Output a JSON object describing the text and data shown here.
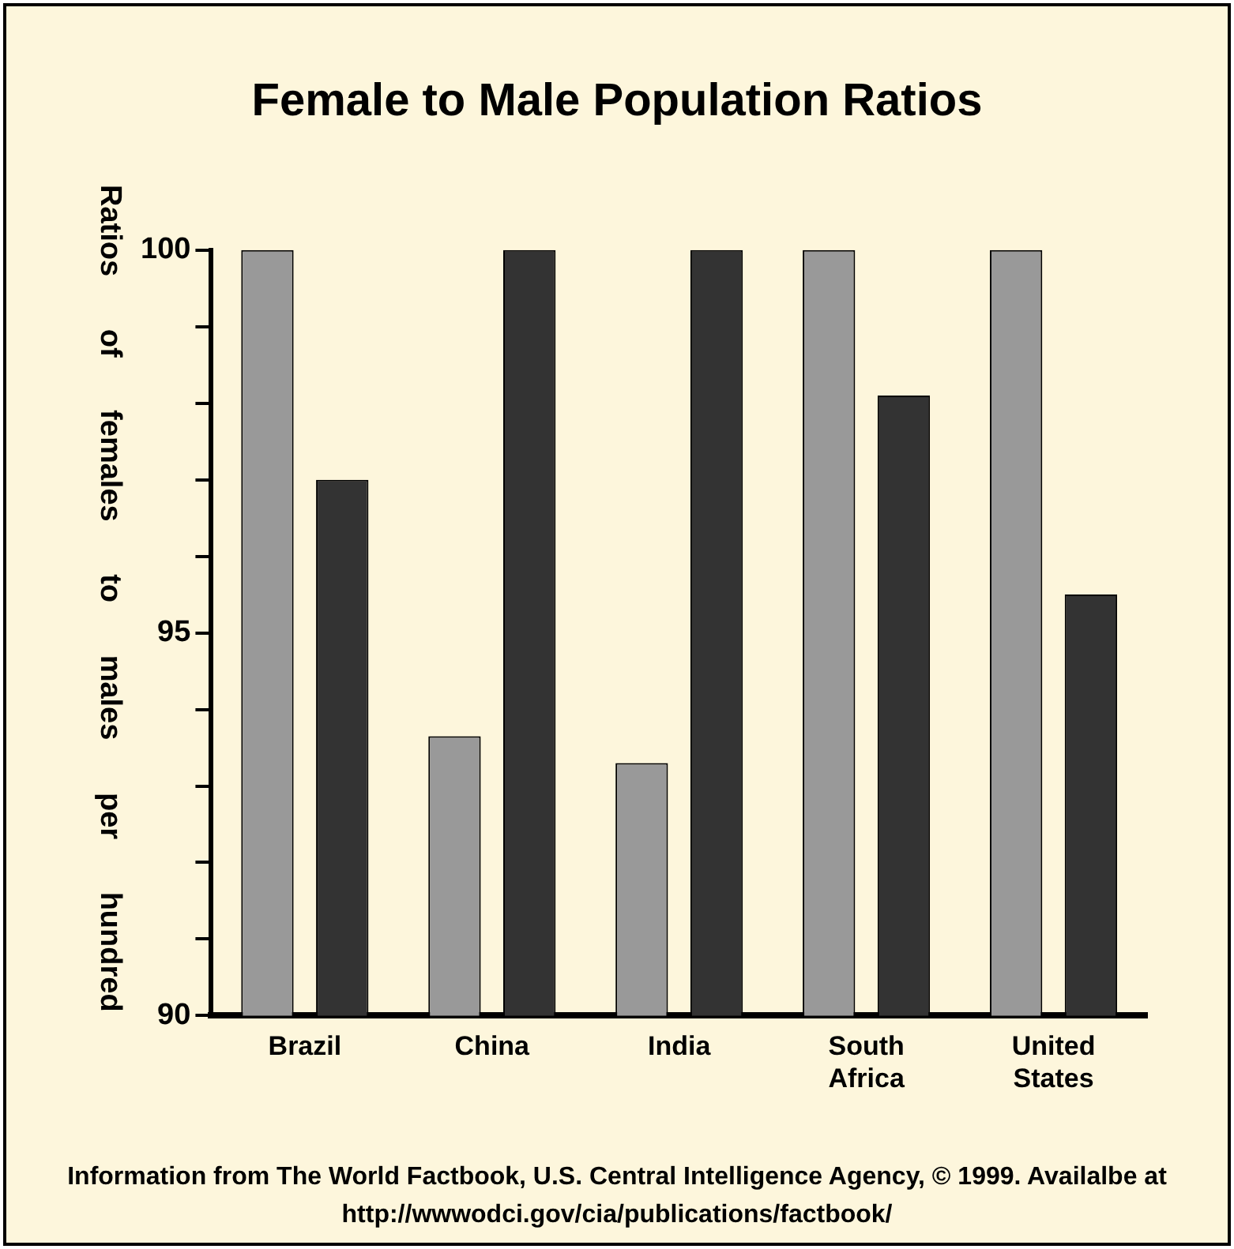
{
  "chart_data": {
    "type": "bar",
    "title": "Female to Male Population Ratios",
    "ylabel": "Ratios of females to males per hundred",
    "categories": [
      "Brazil",
      "China",
      "India",
      "South Africa",
      "United States"
    ],
    "series": [
      {
        "color": "#999999",
        "values": [
          100,
          93.65,
          93.3,
          100,
          100
        ]
      },
      {
        "color": "#333333",
        "values": [
          97.0,
          100,
          100,
          98.1,
          95.5
        ]
      }
    ],
    "ylim": [
      90,
      100
    ],
    "yticks": [
      90,
      {
        "value": 91,
        "label": null
      },
      {
        "value": 92,
        "label": null
      },
      {
        "value": 93,
        "label": null
      },
      {
        "value": 94,
        "label": null
      },
      95,
      {
        "value": 96,
        "label": null
      },
      {
        "value": 97,
        "label": null
      },
      {
        "value": 98,
        "label": null
      },
      {
        "value": 99,
        "label": null
      },
      100
    ],
    "grid": false,
    "legend": false,
    "annotations": [
      "Information from The World Factbook, U.S. Central Intelligence Agency, © 1999. Availalbe at http://wwwodci.gov/cia/publications/factbook/"
    ]
  }
}
